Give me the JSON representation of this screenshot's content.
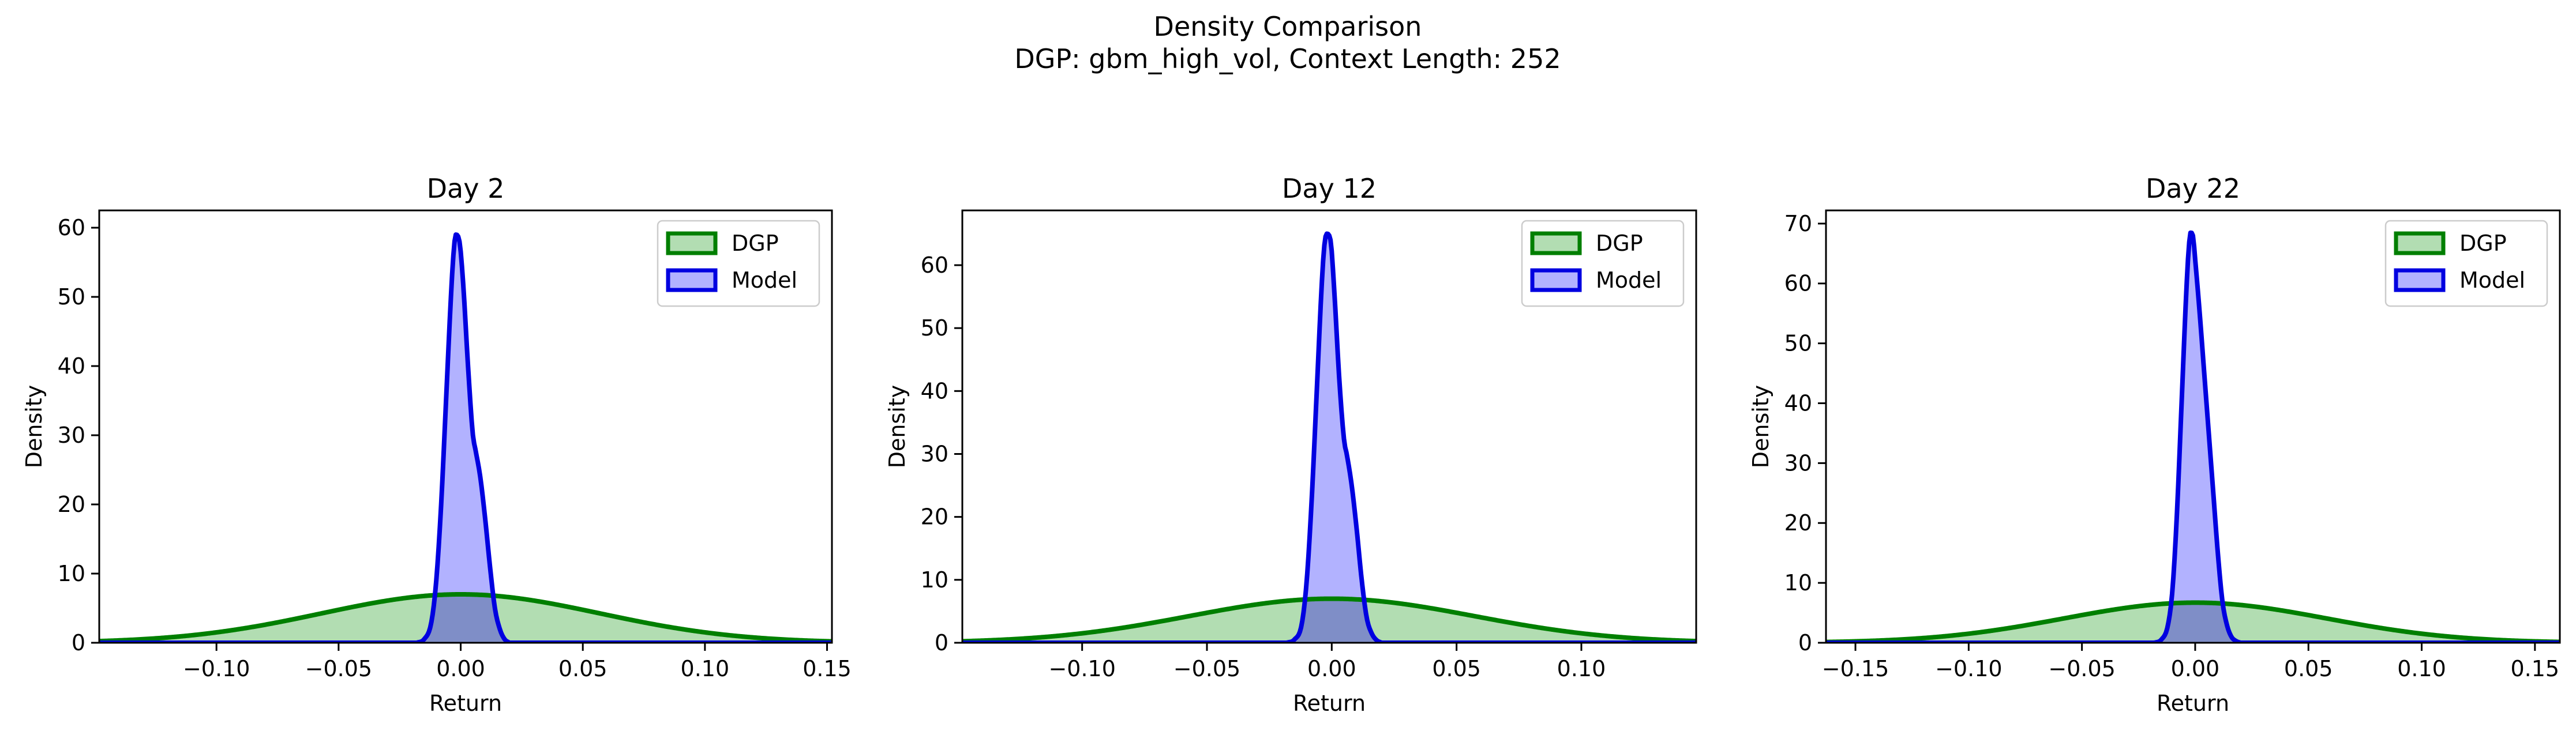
{
  "figure": {
    "title_line1": "Density Comparison",
    "title_line2": "DGP: gbm_high_vol, Context Length: 252"
  },
  "colors": {
    "dgp_line": "#007F00",
    "dgp_fill": "#B2DDB2",
    "model_line": "#0000E0",
    "model_fill": "#B2B2FF",
    "overlap_fill": "#7F8EC7"
  },
  "chart_data": [
    {
      "type": "area",
      "title": "Day 2",
      "xlabel": "Return",
      "ylabel": "Density",
      "xlim": [
        -0.148,
        0.152
      ],
      "ylim": [
        0,
        62.5
      ],
      "xticks": [
        -0.1,
        -0.05,
        0.0,
        0.05,
        0.1,
        0.15
      ],
      "xtick_labels": [
        "−0.10",
        "−0.05",
        "0.00",
        "0.05",
        "0.10",
        "0.15"
      ],
      "yticks": [
        0,
        10,
        20,
        30,
        40,
        50,
        60
      ],
      "ytick_labels": [
        "0",
        "10",
        "20",
        "30",
        "40",
        "50",
        "60"
      ],
      "legend": {
        "position": "top-right",
        "entries": [
          "DGP",
          "Model"
        ]
      },
      "grid": false,
      "series": [
        {
          "name": "DGP",
          "kind": "normal",
          "mean": 0.0,
          "sd": 0.057,
          "peak": 7.0
        },
        {
          "name": "Model",
          "kind": "points",
          "x": [
            -0.018,
            -0.015,
            -0.012,
            -0.01,
            -0.008,
            -0.006,
            -0.004,
            -0.003,
            -0.002,
            -0.0005,
            0.001,
            0.003,
            0.005,
            0.006,
            0.008,
            0.01,
            0.012,
            0.014,
            0.016,
            0.018,
            0.02
          ],
          "y": [
            0,
            0.5,
            3,
            9,
            20,
            35,
            50,
            56,
            59,
            58,
            52,
            40,
            30,
            28,
            24,
            18,
            11,
            5,
            2,
            0.5,
            0
          ]
        }
      ]
    },
    {
      "type": "area",
      "title": "Day 12",
      "xlabel": "Return",
      "ylabel": "Density",
      "xlim": [
        -0.148,
        0.146
      ],
      "ylim": [
        0,
        68.7
      ],
      "xticks": [
        -0.1,
        -0.05,
        0.0,
        0.05,
        0.1
      ],
      "xtick_labels": [
        "−0.10",
        "−0.05",
        "0.00",
        "0.05",
        "0.10"
      ],
      "yticks": [
        0,
        10,
        20,
        30,
        40,
        50,
        60
      ],
      "ytick_labels": [
        "0",
        "10",
        "20",
        "30",
        "40",
        "50",
        "60"
      ],
      "legend": {
        "position": "top-right",
        "entries": [
          "DGP",
          "Model"
        ]
      },
      "grid": false,
      "series": [
        {
          "name": "DGP",
          "kind": "normal",
          "mean": 0.0,
          "sd": 0.057,
          "peak": 7.0
        },
        {
          "name": "Model",
          "kind": "points",
          "x": [
            -0.018,
            -0.015,
            -0.012,
            -0.01,
            -0.008,
            -0.006,
            -0.004,
            -0.003,
            -0.002,
            -0.0005,
            0.001,
            0.003,
            0.005,
            0.006,
            0.008,
            0.01,
            0.012,
            0.014,
            0.016,
            0.018,
            0.02
          ],
          "y": [
            0,
            0.5,
            3,
            10,
            23,
            40,
            57,
            63,
            65,
            64,
            56,
            42,
            32,
            30,
            25,
            18,
            10,
            4,
            1.5,
            0.4,
            0
          ]
        }
      ]
    },
    {
      "type": "area",
      "title": "Day 22",
      "xlabel": "Return",
      "ylabel": "Density",
      "xlim": [
        -0.163,
        0.161
      ],
      "ylim": [
        0,
        72.2
      ],
      "xticks": [
        -0.15,
        -0.1,
        -0.05,
        0.0,
        0.05,
        0.1,
        0.15
      ],
      "xtick_labels": [
        "−0.15",
        "−0.10",
        "−0.05",
        "0.00",
        "0.05",
        "0.10",
        "0.15"
      ],
      "yticks": [
        0,
        10,
        20,
        30,
        40,
        50,
        60,
        70
      ],
      "ytick_labels": [
        "0",
        "10",
        "20",
        "30",
        "40",
        "50",
        "60",
        "70"
      ],
      "legend": {
        "position": "top-right",
        "entries": [
          "DGP",
          "Model"
        ]
      },
      "grid": false,
      "series": [
        {
          "name": "DGP",
          "kind": "normal",
          "mean": 0.0,
          "sd": 0.058,
          "peak": 6.7
        },
        {
          "name": "Model",
          "kind": "points",
          "x": [
            -0.018,
            -0.015,
            -0.012,
            -0.01,
            -0.008,
            -0.006,
            -0.004,
            -0.003,
            -0.002,
            -0.001,
            0.0,
            0.002,
            0.004,
            0.006,
            0.008,
            0.01,
            0.012,
            0.014,
            0.016,
            0.018,
            0.02
          ],
          "y": [
            0,
            0.5,
            3,
            9,
            22,
            40,
            58,
            65,
            68.5,
            68,
            64,
            55,
            45,
            35,
            25,
            15,
            7,
            3,
            1,
            0.3,
            0
          ]
        }
      ]
    }
  ]
}
